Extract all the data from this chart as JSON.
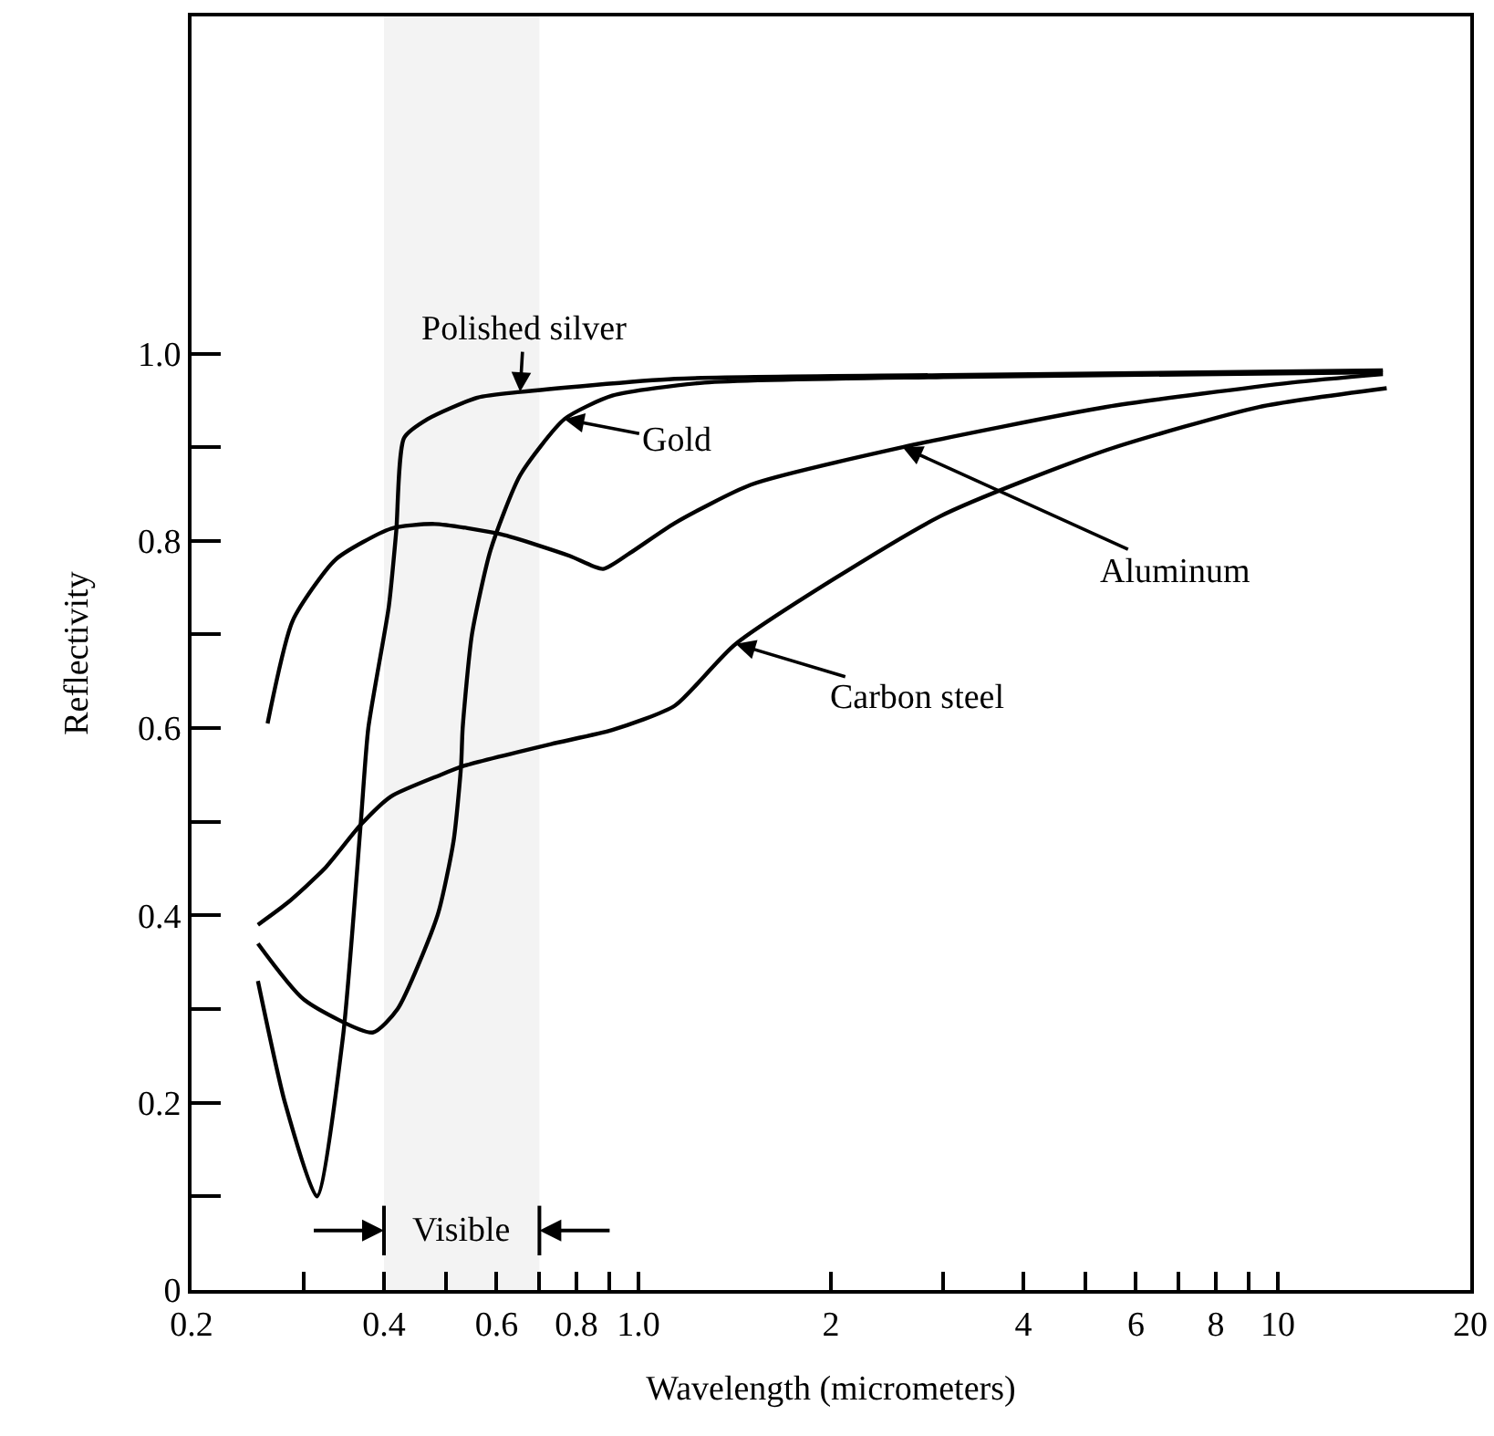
{
  "chart_data": {
    "type": "line",
    "xlabel": "Wavelength (micrometers)",
    "ylabel": "Reflectivity",
    "log": "x",
    "grid": false,
    "marker": "none",
    "line_style": "solid",
    "xlim": [
      0.2,
      20
    ],
    "ylim": [
      0,
      1.36
    ],
    "xticks": [
      0.2,
      {
        "value": 0.3,
        "label": null
      },
      0.4,
      {
        "value": 0.5,
        "label": null
      },
      0.6,
      {
        "value": 0.7,
        "label": null
      },
      0.8,
      {
        "value": 0.9,
        "label": null
      },
      {
        "value": 1,
        "label": "1.0"
      },
      2,
      {
        "value": 3,
        "label": null
      },
      4,
      {
        "value": 5,
        "label": null
      },
      6,
      {
        "value": 7,
        "label": null
      },
      8,
      {
        "value": 9,
        "label": null
      },
      10,
      20
    ],
    "yticks": [
      0,
      {
        "value": 0.1,
        "label": null
      },
      0.2,
      {
        "value": 0.3,
        "label": null
      },
      0.4,
      {
        "value": 0.5,
        "label": null
      },
      0.6,
      {
        "value": 0.7,
        "label": null
      },
      0.8,
      {
        "value": 0.9,
        "label": null
      },
      {
        "value": 1,
        "label": "1.0"
      }
    ],
    "series": [
      {
        "color": "#000000",
        "x": [
          0.254,
          0.28,
          0.314,
          0.345,
          0.368,
          0.378,
          0.407,
          0.418,
          0.43,
          0.468,
          0.56,
          0.653,
          1.14,
          3.0,
          14.6
        ],
        "values": [
          0.33,
          0.2,
          0.1,
          0.27,
          0.5,
          0.6,
          0.73,
          0.81,
          0.91,
          0.93,
          0.953,
          0.959,
          0.973,
          0.977,
          0.982
        ]
      },
      {
        "color": "#000000",
        "x": [
          0.254,
          0.3,
          0.384,
          0.42,
          0.485,
          0.514,
          0.528,
          0.531,
          0.549,
          0.587,
          0.653,
          0.766,
          0.91,
          1.27,
          3.0,
          14.6
        ],
        "values": [
          0.37,
          0.31,
          0.275,
          0.3,
          0.4,
          0.48,
          0.56,
          0.6,
          0.7,
          0.79,
          0.87,
          0.93,
          0.955,
          0.969,
          0.975,
          0.98
        ]
      },
      {
        "color": "#000000",
        "x": [
          0.263,
          0.288,
          0.336,
          0.41,
          0.48,
          0.61,
          0.78,
          0.88,
          0.97,
          1.14,
          1.5,
          2.59,
          5.4,
          10.5,
          14.6
        ],
        "values": [
          0.605,
          0.715,
          0.78,
          0.813,
          0.818,
          0.807,
          0.784,
          0.77,
          0.787,
          0.819,
          0.86,
          0.9,
          0.943,
          0.969,
          0.978
        ]
      },
      {
        "color": "#000000",
        "x": [
          0.254,
          0.282,
          0.323,
          0.368,
          0.41,
          0.49,
          0.535,
          0.73,
          0.91,
          1.14,
          1.42,
          2.96,
          5.4,
          9.35,
          14.8
        ],
        "values": [
          0.39,
          0.413,
          0.45,
          0.497,
          0.527,
          0.55,
          0.56,
          0.583,
          0.598,
          0.624,
          0.69,
          0.826,
          0.897,
          0.943,
          0.963
        ]
      }
    ],
    "annotations": [
      {
        "text": "Polished silver",
        "x": 0.653,
        "y": 0.959
      },
      {
        "text": "Gold",
        "x": 0.766,
        "y": 0.93
      },
      {
        "text": "Aluminum",
        "x": 2.59,
        "y": 0.9
      },
      {
        "text": "Carbon steel",
        "x": 1.42,
        "y": 0.69
      }
    ],
    "bands": [
      {
        "axis": "x",
        "from": 0.4,
        "to": 0.7,
        "label": "Visible"
      }
    ]
  }
}
